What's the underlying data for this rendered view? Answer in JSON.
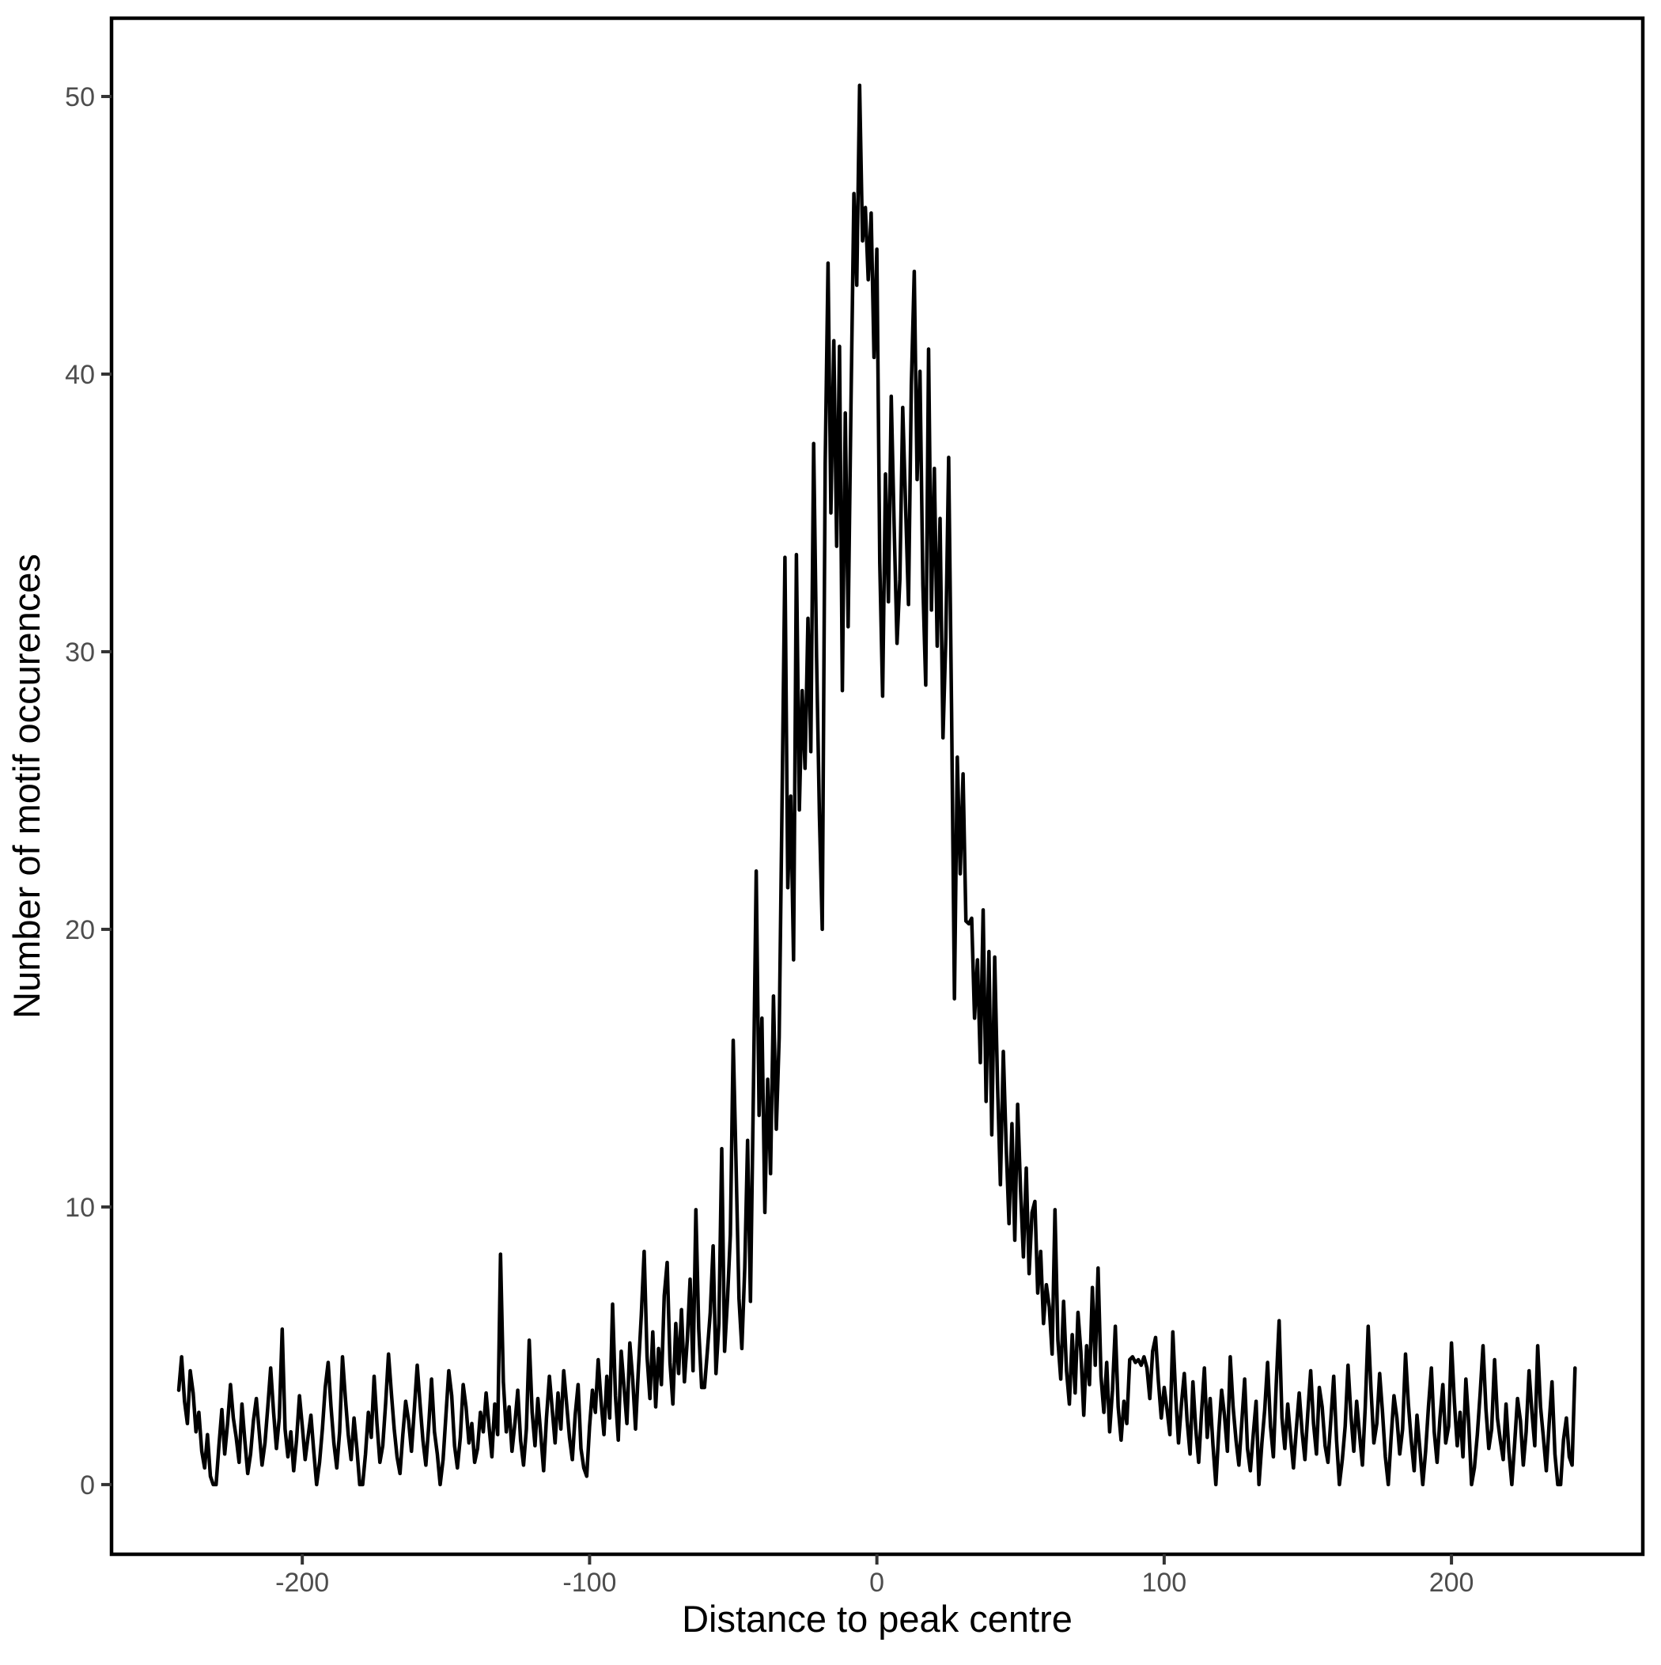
{
  "page": {
    "background": "#ffffff"
  },
  "chart_data": {
    "type": "line",
    "title": "",
    "xlabel": "Distance to peak centre",
    "ylabel": "Number of motif occurences",
    "x_ticks": [
      -200,
      -100,
      0,
      100,
      200
    ],
    "y_ticks": [
      0,
      10,
      20,
      30,
      40,
      50
    ],
    "xlim": [
      -266.4,
      266.6
    ],
    "ylim": [
      -2.51,
      52.82
    ],
    "grid": false,
    "legend": null,
    "panel_border": true,
    "line_color": "#000000",
    "axis_color": "#000000",
    "tick_color": "#333333",
    "tick_label_color": "#4d4d4d",
    "series": [
      {
        "name": "motif occurrences",
        "x_start": -243,
        "x_step": 1,
        "values": [
          3.4,
          4.6,
          3.0,
          2.2,
          4.1,
          3.3,
          1.9,
          2.6,
          1.2,
          0.6,
          1.8,
          0.3,
          0.0,
          0.0,
          1.4,
          2.7,
          1.1,
          2.2,
          3.6,
          2.4,
          1.7,
          0.8,
          2.9,
          1.6,
          0.4,
          1.1,
          2.3,
          3.1,
          1.9,
          0.7,
          1.5,
          2.8,
          4.2,
          2.6,
          1.3,
          2.4,
          5.6,
          2.0,
          1.0,
          1.9,
          0.5,
          1.6,
          3.2,
          2.1,
          0.9,
          1.7,
          2.5,
          1.2,
          0.0,
          0.8,
          2.0,
          3.5,
          4.4,
          2.8,
          1.5,
          0.6,
          1.9,
          4.6,
          3.1,
          1.8,
          0.9,
          2.4,
          1.3,
          0.0,
          0.0,
          1.1,
          2.6,
          1.7,
          3.9,
          2.2,
          0.8,
          1.4,
          2.9,
          4.7,
          3.3,
          2.0,
          1.0,
          0.4,
          1.8,
          3.0,
          2.3,
          1.2,
          2.7,
          4.3,
          2.9,
          1.6,
          0.7,
          2.1,
          3.8,
          1.9,
          1.1,
          0.0,
          0.9,
          2.5,
          4.1,
          3.2,
          1.4,
          0.6,
          1.7,
          3.6,
          2.8,
          1.5,
          2.2,
          0.8,
          1.3,
          2.6,
          1.9,
          3.3,
          2.1,
          1.0,
          2.9,
          1.8,
          8.3,
          3.7,
          1.9,
          2.8,
          1.2,
          2.2,
          3.4,
          1.6,
          0.7,
          2.0,
          5.2,
          2.6,
          1.4,
          3.1,
          1.8,
          0.5,
          2.4,
          3.9,
          2.7,
          1.5,
          3.3,
          2.0,
          4.1,
          2.9,
          1.7,
          0.9,
          2.5,
          3.6,
          1.3,
          0.6,
          0.3,
          2.1,
          3.4,
          2.6,
          4.5,
          3.0,
          1.8,
          3.9,
          2.4,
          6.5,
          3.2,
          1.6,
          4.8,
          3.5,
          2.2,
          5.1,
          3.8,
          2.0,
          4.2,
          6.1,
          8.4,
          4.6,
          3.1,
          5.5,
          2.8,
          4.9,
          3.6,
          6.8,
          8.0,
          4.4,
          2.9,
          5.8,
          4.0,
          6.3,
          3.7,
          5.2,
          7.4,
          4.1,
          9.9,
          5.6,
          3.5,
          3.5,
          4.8,
          6.2,
          8.6,
          4.0,
          5.8,
          12.1,
          4.8,
          6.7,
          9.0,
          16.0,
          11.4,
          6.7,
          4.9,
          7.8,
          12.4,
          6.6,
          13.9,
          22.1,
          13.3,
          16.8,
          9.8,
          14.6,
          11.2,
          17.6,
          12.8,
          16.1,
          24.7,
          33.4,
          21.5,
          24.8,
          18.9,
          33.5,
          24.3,
          28.6,
          25.8,
          31.2,
          26.4,
          37.5,
          29.8,
          24.1,
          20.0,
          36.8,
          44.0,
          35.0,
          41.2,
          33.8,
          41.0,
          28.6,
          38.6,
          30.9,
          38.9,
          46.5,
          43.2,
          50.4,
          44.8,
          46.0,
          43.4,
          45.8,
          40.6,
          44.5,
          33.2,
          28.4,
          36.4,
          31.8,
          39.2,
          34.6,
          30.3,
          32.6,
          38.8,
          35.2,
          31.7,
          39.6,
          43.7,
          36.2,
          40.1,
          32.4,
          28.8,
          40.9,
          31.5,
          36.6,
          30.2,
          34.8,
          26.9,
          30.5,
          37.0,
          27.8,
          17.5,
          26.2,
          22.0,
          25.6,
          20.3,
          20.2,
          20.4,
          16.8,
          18.9,
          15.2,
          20.7,
          13.8,
          19.2,
          12.6,
          19.0,
          14.4,
          10.8,
          15.6,
          12.2,
          9.4,
          13.0,
          8.8,
          13.7,
          10.6,
          8.2,
          11.4,
          7.6,
          9.8,
          10.2,
          6.9,
          8.4,
          5.8,
          7.2,
          6.4,
          4.7,
          9.9,
          5.2,
          3.8,
          6.6,
          4.1,
          2.9,
          5.4,
          3.3,
          6.2,
          4.8,
          2.5,
          5.0,
          3.6,
          7.1,
          4.3,
          7.8,
          3.9,
          2.6,
          4.4,
          1.9,
          3.4,
          5.7,
          2.8,
          1.6,
          3.0,
          2.2,
          4.5,
          4.6,
          4.4,
          4.5,
          4.3,
          4.6,
          4.2,
          3.1,
          4.8,
          5.3,
          3.7,
          2.4,
          3.5,
          2.7,
          1.8,
          5.5,
          3.2,
          1.5,
          2.9,
          4.0,
          2.3,
          1.1,
          3.7,
          2.0,
          0.8,
          2.6,
          4.2,
          1.7,
          3.1,
          1.4,
          0.0,
          1.9,
          3.4,
          2.5,
          1.2,
          4.6,
          2.8,
          1.6,
          0.7,
          2.2,
          3.8,
          1.3,
          0.5,
          1.8,
          3.0,
          0.0,
          1.5,
          2.7,
          4.4,
          2.1,
          1.0,
          3.6,
          5.9,
          2.4,
          1.3,
          2.9,
          1.7,
          0.6,
          2.0,
          3.3,
          1.9,
          0.9,
          2.6,
          4.1,
          2.2,
          1.1,
          3.5,
          2.8,
          1.4,
          0.8,
          2.3,
          3.9,
          1.6,
          0.0,
          0.9,
          2.1,
          4.3,
          2.5,
          1.2,
          3.0,
          1.8,
          0.7,
          2.8,
          5.7,
          3.4,
          1.5,
          2.2,
          4.0,
          2.6,
          1.0,
          0.0,
          1.7,
          3.2,
          2.4,
          1.1,
          2.0,
          4.7,
          2.9,
          1.6,
          0.5,
          2.5,
          1.3,
          0.0,
          1.2,
          2.8,
          4.2,
          1.9,
          0.8,
          2.4,
          3.6,
          1.5,
          2.1,
          5.1,
          3.0,
          1.4,
          2.6,
          1.0,
          3.8,
          2.2,
          0.0,
          0.6,
          1.8,
          3.3,
          5.0,
          2.7,
          1.3,
          2.0,
          4.5,
          2.4,
          1.6,
          0.9,
          2.9,
          1.2,
          0.0,
          1.5,
          3.1,
          2.3,
          0.7,
          1.9,
          4.1,
          2.6,
          1.4,
          5.0,
          2.8,
          1.7,
          0.5,
          2.2,
          3.7,
          1.1,
          0.0,
          0.0,
          1.6,
          2.4,
          1.0,
          0.7,
          4.2
        ]
      }
    ]
  }
}
